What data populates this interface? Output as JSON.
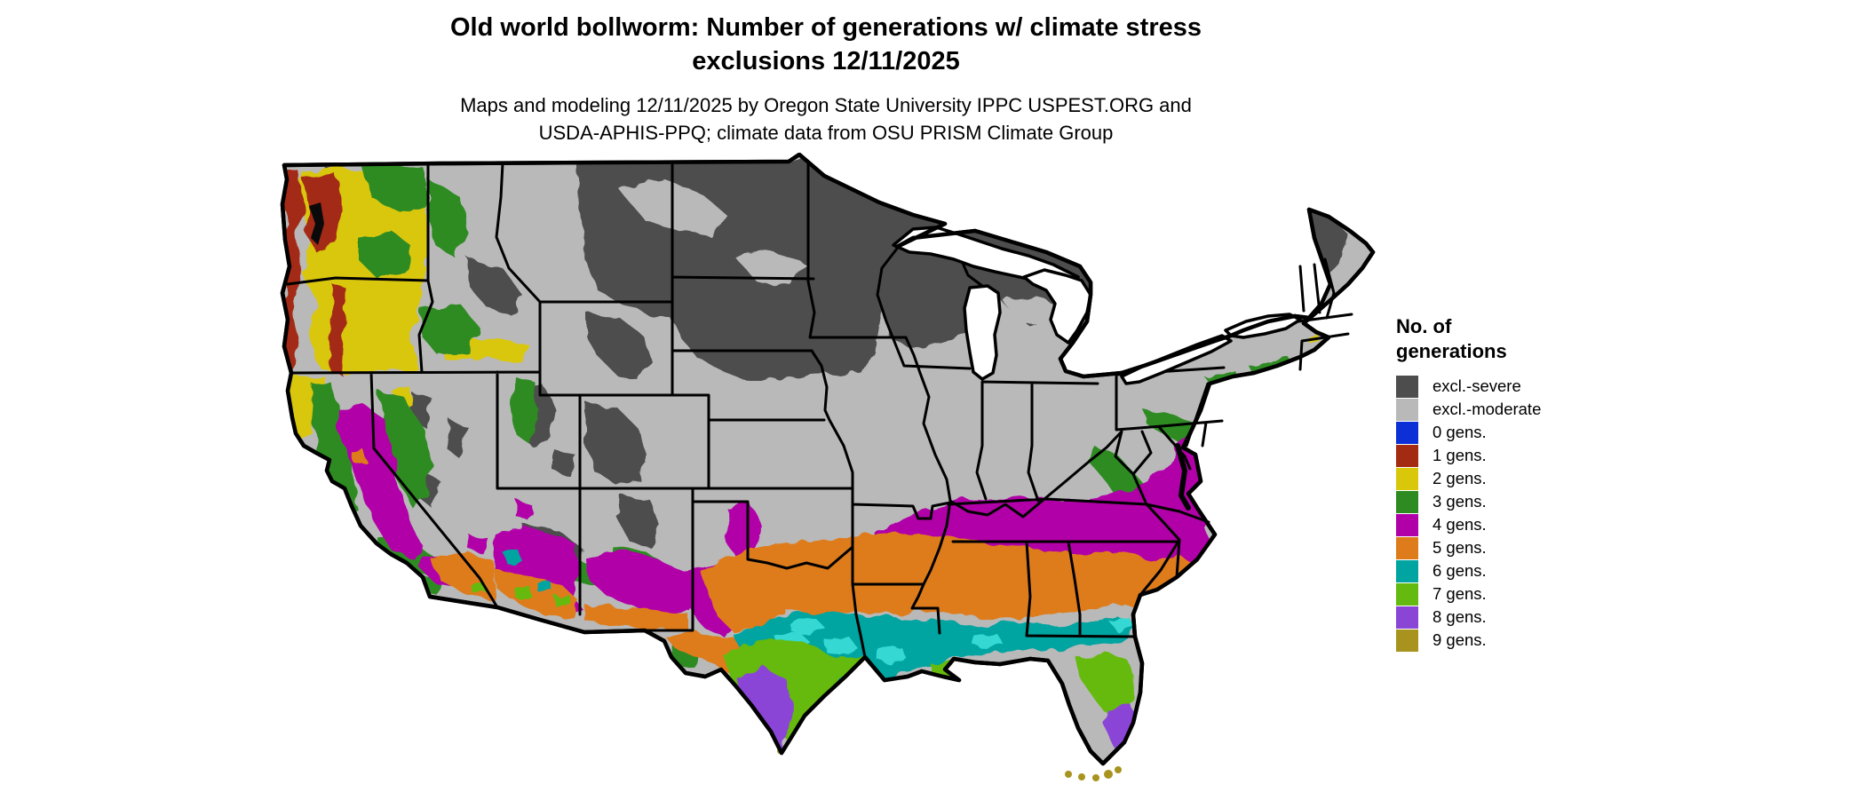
{
  "header": {
    "title_line1": "Old world bollworm: Number of generations w/ climate stress",
    "title_line2": "exclusions 12/11/2025",
    "subtitle_line1": "Maps and modeling 12/11/2025 by Oregon State University IPPC USPEST.ORG and",
    "subtitle_line2": "USDA-APHIS-PPQ; climate data from OSU PRISM Climate Group"
  },
  "legend": {
    "title_line1": "No. of",
    "title_line2": "generations",
    "items": [
      {
        "label": "excl.-severe",
        "color_key": "severe"
      },
      {
        "label": "excl.-moderate",
        "color_key": "moderate"
      },
      {
        "label": "0 gens.",
        "color_key": "gen0"
      },
      {
        "label": "1 gens.",
        "color_key": "gen1"
      },
      {
        "label": "2 gens.",
        "color_key": "gen2"
      },
      {
        "label": "3 gens.",
        "color_key": "gen3"
      },
      {
        "label": "4 gens.",
        "color_key": "gen4"
      },
      {
        "label": "5 gens.",
        "color_key": "gen5"
      },
      {
        "label": "6 gens.",
        "color_key": "gen6"
      },
      {
        "label": "7 gens.",
        "color_key": "gen7"
      },
      {
        "label": "8 gens.",
        "color_key": "gen8"
      },
      {
        "label": "9 gens.",
        "color_key": "gen9"
      }
    ]
  },
  "colors": {
    "severe": "#4d4d4d",
    "moderate": "#b9b9b9",
    "gen0": "#0d30d6",
    "gen1": "#a32b12",
    "gen2": "#d9c70a",
    "gen3": "#2e8b22",
    "gen4": "#b200a8",
    "gen5": "#de7c1b",
    "gen6": "#00a4a0",
    "gen6_light": "#35d8d2",
    "gen7": "#65ba10",
    "gen8": "#8a45d6",
    "gen9": "#a7931e",
    "water": "#ffffff",
    "outline": "#000000"
  },
  "map": {
    "name": "contiguous-us-generations-choropleth"
  }
}
